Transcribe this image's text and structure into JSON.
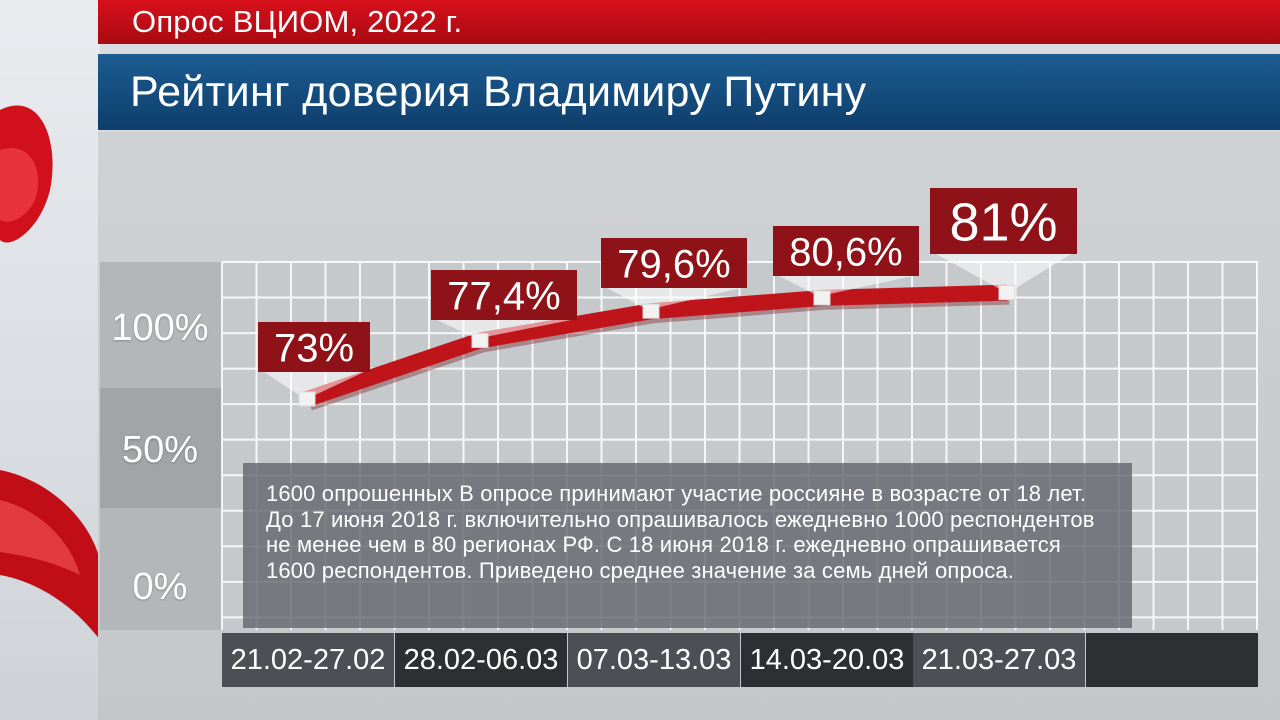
{
  "header": {
    "survey_label": "Опрос ВЦИОМ, 2022 г.",
    "title": "Рейтинг доверия Владимиру Путину"
  },
  "colors": {
    "survey_bar": "#c80e17",
    "title_bar": "#16507f",
    "line": "#c0141b",
    "label_box": "#8e1218"
  },
  "note": "1600 опрошенных В опросе принимают участие россияне в возрасте от 18 лет. До 17 июня 2018 г. включительно опрашивалось ежедневно 1000 респондентов не менее чем в 80 регионах РФ. С 18 июня 2018 г. ежедневно опрашивается 1600 респондентов. Приведено среднее значение за семь дней опроса.",
  "chart_data": {
    "type": "line",
    "title": "Рейтинг доверия Владимиру Путину",
    "categories": [
      "21.02-27.02",
      "28.02-06.03",
      "07.03-13.03",
      "14.03-20.03",
      "21.03-27.03"
    ],
    "values": [
      73,
      77.4,
      79.6,
      80.6,
      81
    ],
    "value_labels": [
      "73%",
      "77,4%",
      "79,6%",
      "80,6%",
      "81%"
    ],
    "y_ticks": [
      "100%",
      "50%",
      "0%"
    ],
    "ylim": [
      0,
      100
    ],
    "grid": true
  }
}
